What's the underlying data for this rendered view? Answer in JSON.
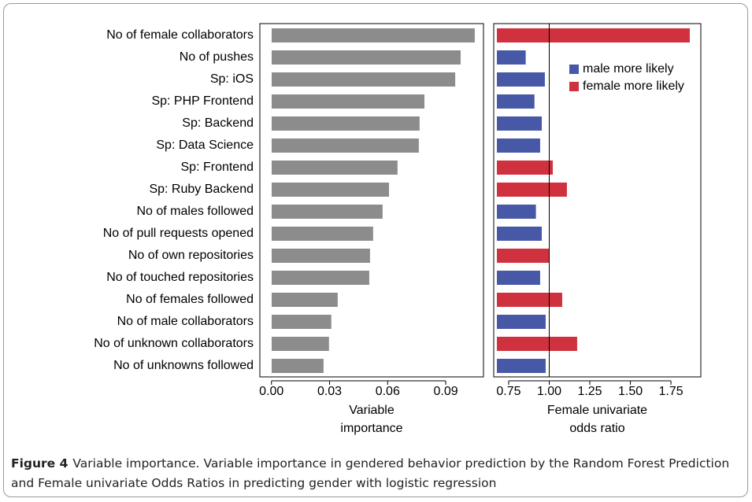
{
  "chart_data": [
    {
      "type": "bar",
      "orientation": "horizontal",
      "categories": [
        "No of female collaborators",
        "No of pushes",
        "Sp: iOS",
        "Sp: PHP Frontend",
        "Sp: Backend",
        "Sp: Data Science",
        "Sp: Frontend",
        "Sp: Ruby Backend",
        "No of males followed",
        "No of pull requests opened",
        "No of own repositories",
        "No of touched repositories",
        "No of females followed",
        "No of male collaborators",
        "No of unknown collaborators",
        "No of unknowns followed"
      ],
      "values": [
        0.105,
        0.0977,
        0.0949,
        0.079,
        0.0765,
        0.0761,
        0.0651,
        0.0607,
        0.0574,
        0.0525,
        0.0509,
        0.0505,
        0.0342,
        0.0309,
        0.0297,
        0.0269
      ],
      "color": "#8c8c8c",
      "xlim": [
        -0.006,
        0.1095
      ],
      "xticks": [
        {
          "value": 0,
          "label": "0.00"
        },
        0.03,
        0.06,
        0.09
      ],
      "xlabel": [
        "Variable",
        "importance"
      ]
    },
    {
      "type": "bar",
      "orientation": "horizontal",
      "series": [
        {
          "name": "male more likely",
          "color": "#4658a6",
          "values": [
            null,
            0.855,
            0.973,
            0.909,
            0.954,
            0.944,
            null,
            null,
            0.918,
            0.954,
            null,
            0.944,
            null,
            0.978,
            null,
            0.978
          ]
        },
        {
          "name": "female more likely",
          "color": "#cf313f",
          "values": [
            1.866,
            null,
            null,
            null,
            null,
            null,
            1.022,
            1.109,
            null,
            null,
            0.998,
            null,
            1.08,
            null,
            1.172,
            null
          ]
        }
      ],
      "xlim": [
        0.658,
        1.934
      ],
      "xticks": [
        0.75,
        {
          "value": 1,
          "label": "1.00"
        },
        1.25,
        {
          "value": 1.5,
          "label": "1.50"
        },
        1.75
      ],
      "reference_line": 1,
      "legend": "top-right",
      "xlabel": [
        "Female univariate",
        "odds ratio"
      ]
    }
  ],
  "caption": {
    "label": "Figure 4",
    "text": "Variable importance. Variable importance in gendered behavior prediction by the Random Forest Prediction and Female univariate Odds Ratios in predicting gender with logistic regression"
  }
}
